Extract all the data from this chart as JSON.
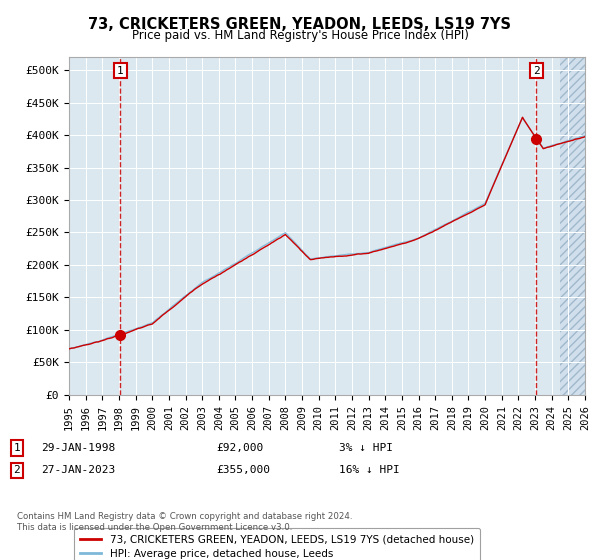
{
  "title": "73, CRICKETERS GREEN, YEADON, LEEDS, LS19 7YS",
  "subtitle": "Price paid vs. HM Land Registry's House Price Index (HPI)",
  "bg_color": "#dce8f0",
  "hpi_color": "#7fb8d8",
  "price_color": "#cc0000",
  "sale1_price": 92000,
  "sale2_price": 355000,
  "legend_line1": "73, CRICKETERS GREEN, YEADON, LEEDS, LS19 7YS (detached house)",
  "legend_line2": "HPI: Average price, detached house, Leeds",
  "footer": "Contains HM Land Registry data © Crown copyright and database right 2024.\nThis data is licensed under the Open Government Licence v3.0.",
  "ylim_min": 0,
  "ylim_max": 520000,
  "yticks": [
    0,
    50000,
    100000,
    150000,
    200000,
    250000,
    300000,
    350000,
    400000,
    450000,
    500000
  ],
  "ytick_labels": [
    "£0",
    "£50K",
    "£100K",
    "£150K",
    "£200K",
    "£250K",
    "£300K",
    "£350K",
    "£400K",
    "£450K",
    "£500K"
  ]
}
